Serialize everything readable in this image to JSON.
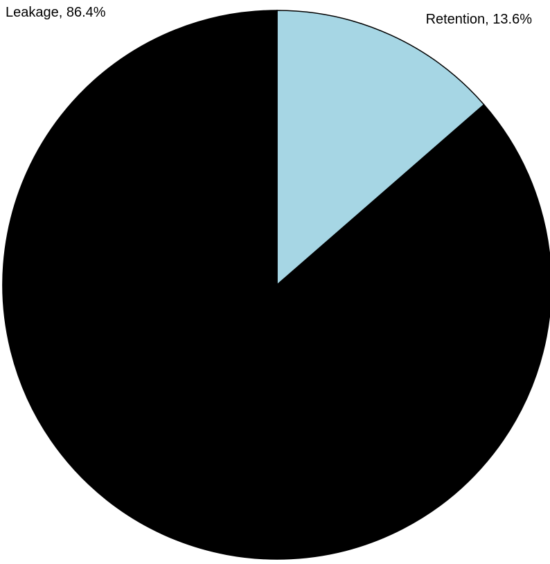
{
  "chart_data": {
    "type": "pie",
    "title": "",
    "slices": [
      {
        "label": "Retention",
        "value": 13.6,
        "display": "Retention, 13.6%",
        "color": "#a6d6e4"
      },
      {
        "label": "Leakage",
        "value": 86.4,
        "display": "Leakage, 86.4%",
        "color": "#000000"
      }
    ],
    "start_angle": "12 o'clock",
    "direction": "clockwise",
    "edge_color": "#000000",
    "legend": "none"
  }
}
